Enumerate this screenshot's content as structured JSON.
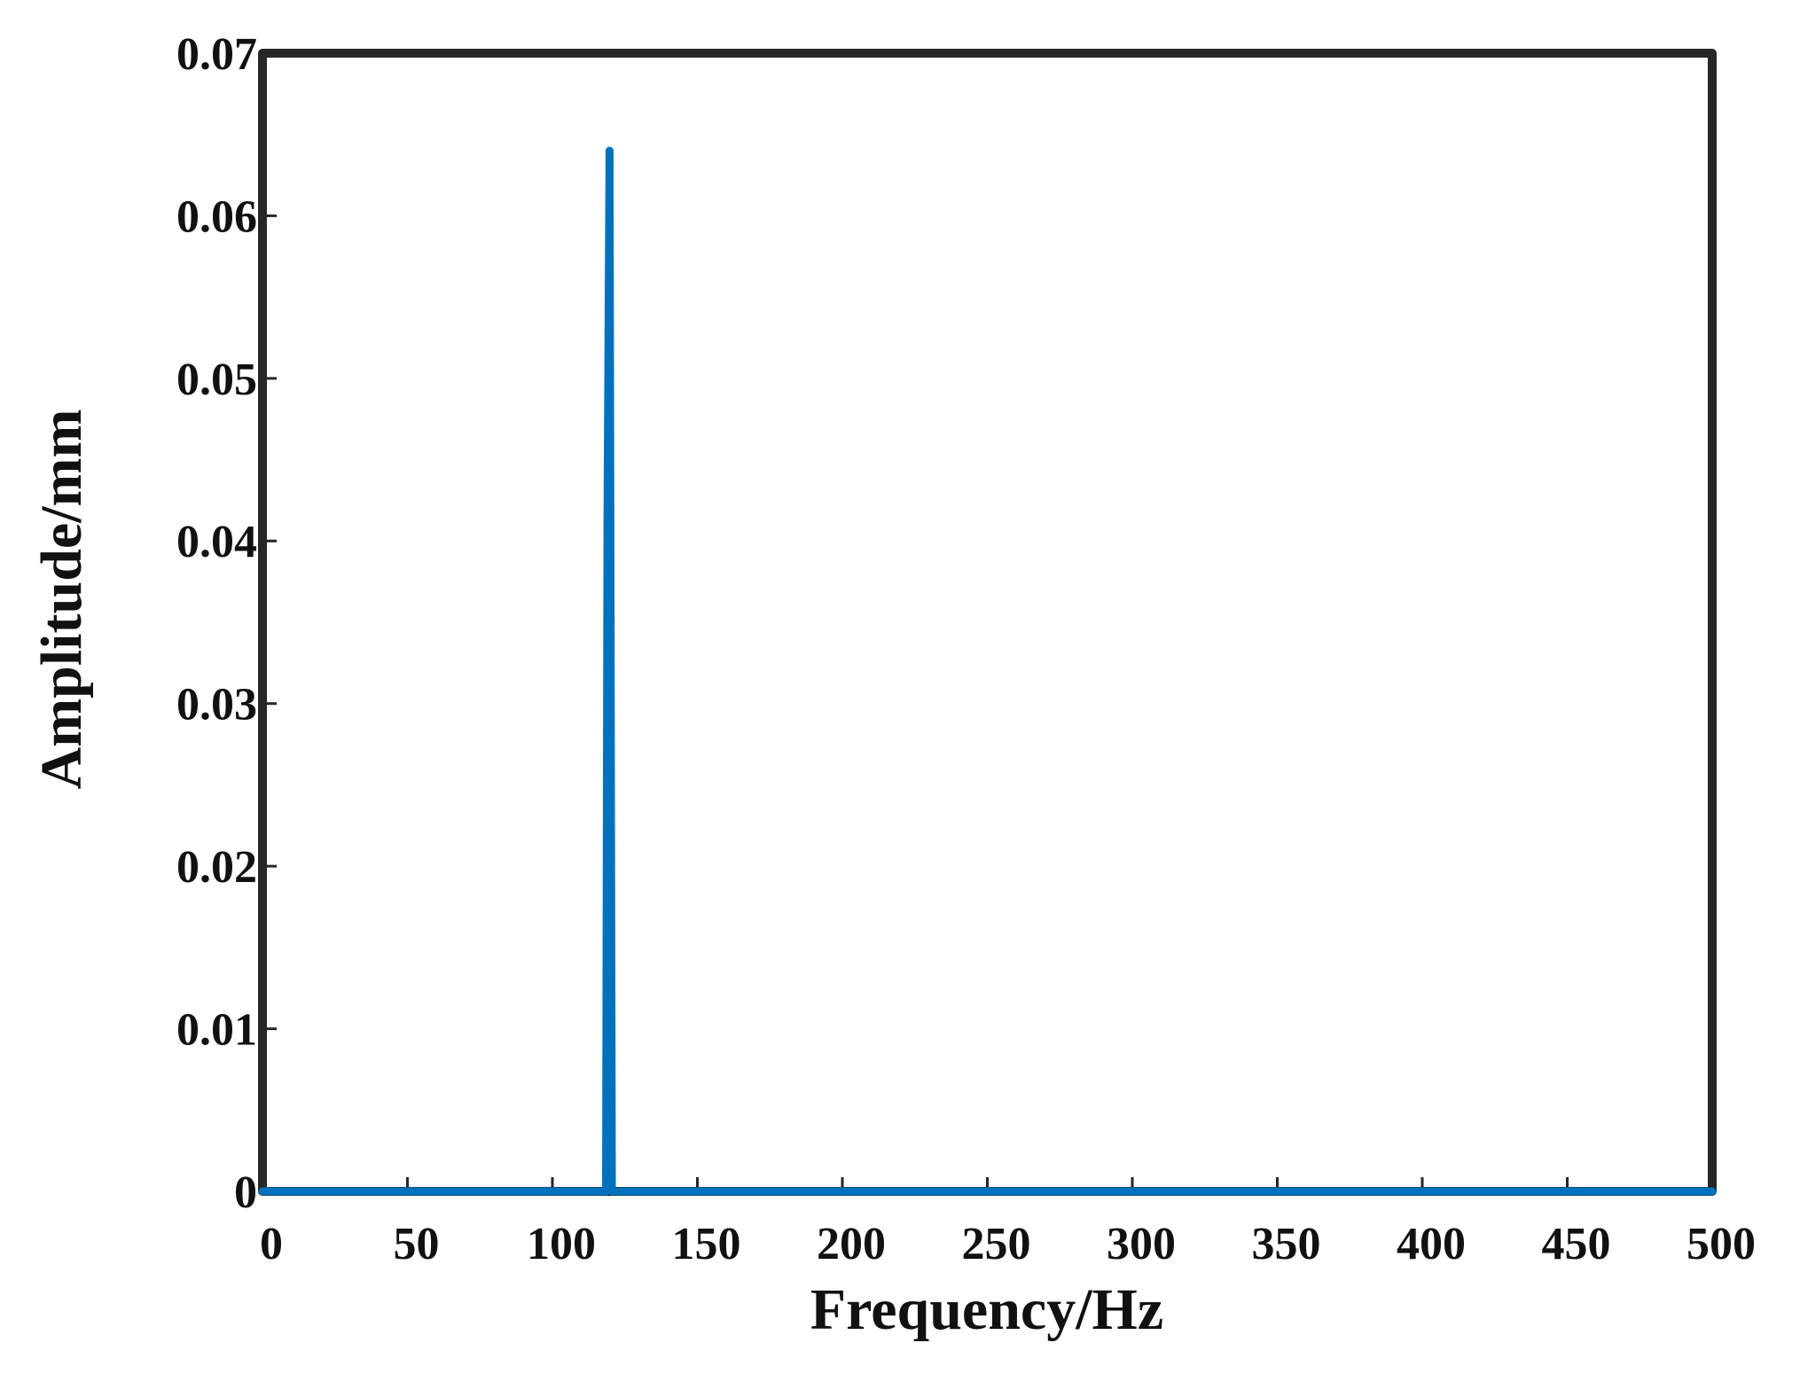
{
  "chart_data": {
    "type": "line",
    "xlabel": "Frequency/Hz",
    "ylabel": "Amplitude/mm",
    "series": [
      {
        "color": "#0072bd",
        "x": [
          0,
          118.5,
          119,
          119.7,
          120.5,
          500
        ],
        "values": [
          0,
          0,
          0.0415,
          0.064,
          0,
          0
        ]
      }
    ],
    "xlim": [
      0,
      500
    ],
    "ylim": [
      0,
      0.07
    ],
    "xticks": [
      0,
      50,
      100,
      150,
      200,
      250,
      300,
      350,
      400,
      450,
      500
    ],
    "yticks": [
      0,
      0.01,
      0.02,
      0.03,
      0.04,
      0.05,
      0.06,
      0.07
    ],
    "grid": false
  }
}
